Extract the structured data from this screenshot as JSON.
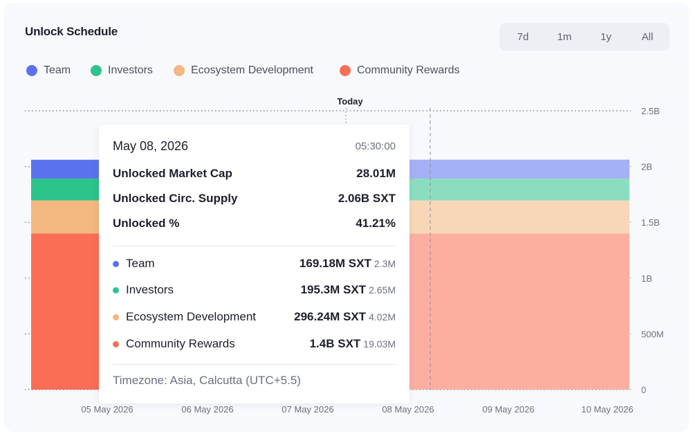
{
  "header": {
    "title": "Unlock Schedule",
    "ranges": [
      "7d",
      "1m",
      "1y",
      "All"
    ],
    "active_range": "7d"
  },
  "legend": [
    {
      "label": "Team",
      "color": "#5b72ee"
    },
    {
      "label": "Investors",
      "color": "#2bc48a"
    },
    {
      "label": "Ecosystem Development",
      "color": "#f3b77f"
    },
    {
      "label": "Community Rewards",
      "color": "#fa6e55"
    }
  ],
  "today_label": "Today",
  "chart_data": {
    "type": "area",
    "stacked": true,
    "x": [
      "05 May 2026",
      "06 May 2026",
      "07 May 2026",
      "08 May 2026",
      "09 May 2026",
      "10 May 2026"
    ],
    "y_ticks": [
      "0",
      "500M",
      "1B",
      "1.5B",
      "2B",
      "2.5B"
    ],
    "ylim": [
      0,
      2500000000
    ],
    "series": [
      {
        "name": "Community Rewards",
        "color": "#fa6e55",
        "values": [
          1400000000,
          1400000000,
          1400000000,
          1400000000,
          1400000000,
          1400000000
        ]
      },
      {
        "name": "Ecosystem Development",
        "color": "#f3b77f",
        "values": [
          296240000,
          296240000,
          296240000,
          296240000,
          296240000,
          296240000
        ]
      },
      {
        "name": "Investors",
        "color": "#2bc48a",
        "values": [
          195300000,
          195300000,
          195300000,
          195300000,
          195300000,
          195300000
        ]
      },
      {
        "name": "Team",
        "color": "#5b72ee",
        "values": [
          169180000,
          169180000,
          169180000,
          169180000,
          169180000,
          169180000
        ]
      }
    ],
    "today_marker": "08 May 2026",
    "grid": true,
    "legend_position": "top-left"
  },
  "tooltip": {
    "date": "May 08, 2026",
    "time": "05:30:00",
    "stats": [
      {
        "label": "Unlocked Market Cap",
        "value": "28.01M"
      },
      {
        "label": "Unlocked Circ. Supply",
        "value": "2.06B SXT"
      },
      {
        "label": "Unlocked %",
        "value": "41.21%"
      }
    ],
    "allocations": [
      {
        "label": "Team",
        "amount": "169.18M SXT",
        "change": "2.3M",
        "color": "#5b72ee"
      },
      {
        "label": "Investors",
        "amount": "195.3M SXT",
        "change": "2.65M",
        "color": "#2bc48a"
      },
      {
        "label": "Ecosystem Development",
        "amount": "296.24M SXT",
        "change": "4.02M",
        "color": "#f3b77f"
      },
      {
        "label": "Community Rewards",
        "amount": "1.4B SXT",
        "change": "19.03M",
        "color": "#fa6e55"
      }
    ],
    "timezone": "Timezone: Asia, Calcutta (UTC+5.5)"
  }
}
